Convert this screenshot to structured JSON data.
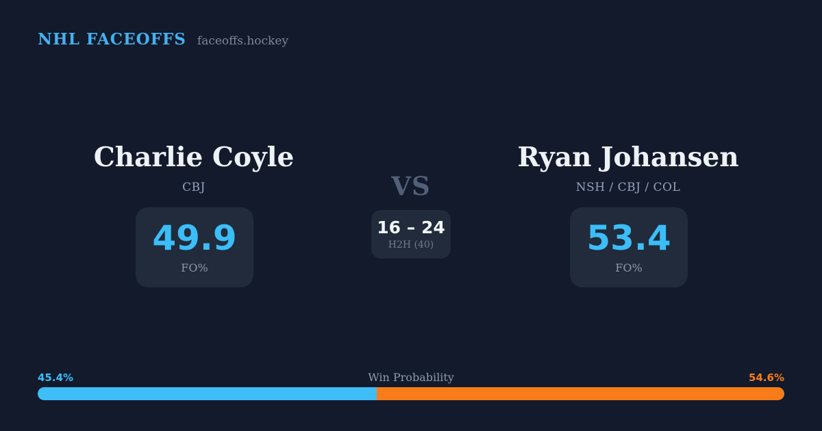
{
  "header": {
    "brand": "NHL FACEOFFS",
    "site": "faceoffs.hockey"
  },
  "players": {
    "left": {
      "name": "Charlie Coyle",
      "teams": "CBJ",
      "fo_pct": "49.9",
      "fo_label": "FO%"
    },
    "right": {
      "name": "Ryan Johansen",
      "teams": "NSH / CBJ / COL",
      "fo_pct": "53.4",
      "fo_label": "FO%"
    }
  },
  "matchup": {
    "vs_label": "VS",
    "h2h_score": "16 – 24",
    "h2h_label": "H2H (40)"
  },
  "win_probability": {
    "label": "Win Probability",
    "left_pct_text": "45.4%",
    "right_pct_text": "54.6%",
    "left_value": 45.4,
    "right_value": 54.6
  },
  "colors": {
    "background": "#121a2b",
    "card": "#212b3b",
    "accent_blue": "#3dbef8",
    "accent_orange": "#f87d1a",
    "brand_blue": "#45b1ee"
  }
}
